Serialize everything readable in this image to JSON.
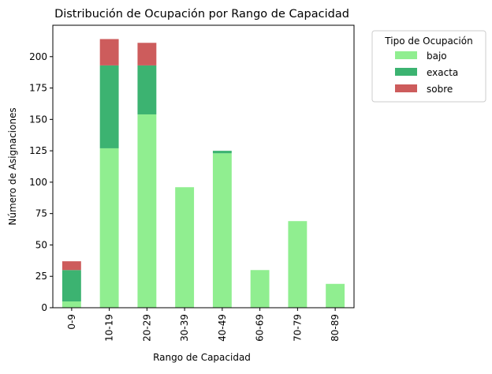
{
  "chart_data": {
    "type": "bar",
    "stacked": true,
    "title": "Distribución de Ocupación por Rango de Capacidad",
    "xlabel": "Rango de Capacidad",
    "ylabel": "Número de Asignaciones",
    "categories": [
      "0-9",
      "10-19",
      "20-29",
      "30-39",
      "40-49",
      "60-69",
      "70-79",
      "80-89"
    ],
    "ylim": [
      0,
      225
    ],
    "yticks": [
      0,
      25,
      50,
      75,
      100,
      125,
      150,
      175,
      200
    ],
    "legend_title": "Tipo de Ocupación",
    "legend_position": "outside-top-right",
    "grid": false,
    "series": [
      {
        "name": "bajo",
        "color": "#90ee90",
        "values": [
          5,
          127,
          154,
          96,
          123,
          30,
          69,
          19
        ]
      },
      {
        "name": "exacta",
        "color": "#3cb371",
        "values": [
          25,
          66,
          39,
          0,
          2,
          0,
          0,
          0
        ]
      },
      {
        "name": "sobre",
        "color": "#cd5c5c",
        "values": [
          7,
          21,
          18,
          0,
          0,
          0,
          0,
          0
        ]
      }
    ]
  }
}
